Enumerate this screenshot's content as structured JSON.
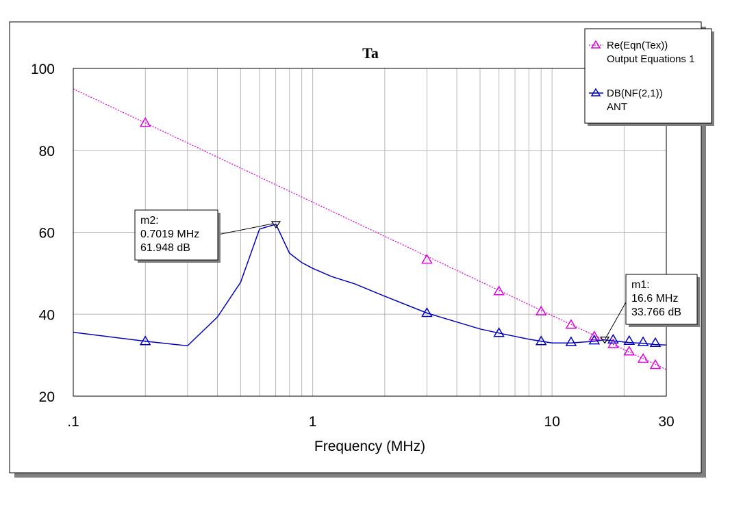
{
  "chart_data": {
    "type": "line",
    "title": "Ta",
    "xlabel": "Frequency (MHz)",
    "ylabel": "",
    "x_scale": "log",
    "xlim": [
      0.1,
      30
    ],
    "ylim": [
      20,
      100
    ],
    "x_ticks": [
      0.1,
      1,
      10,
      30
    ],
    "x_tick_labels": [
      ".1",
      "1",
      "10",
      "30"
    ],
    "y_ticks": [
      20,
      40,
      60,
      80,
      100
    ],
    "y_tick_labels": [
      "20",
      "40",
      "60",
      "80",
      "100"
    ],
    "grid": true,
    "legend_placement": "top-right",
    "series": [
      {
        "name": "Re(Eqn(Tex))",
        "source": "Output Equations 1",
        "color": "#e000e0",
        "style": "dotted",
        "marker": "triangle",
        "x": [
          0.1,
          30
        ],
        "y": [
          95.0,
          26.5
        ],
        "marker_x": [
          0.2,
          3.0,
          6.0,
          9.0,
          12.0,
          15.0,
          18.0,
          21.0,
          24.0,
          27.0
        ],
        "marker_y": [
          86.7,
          53.3,
          45.6,
          40.7,
          37.4,
          34.6,
          32.7,
          30.9,
          29.1,
          27.6
        ]
      },
      {
        "name": "DB(NF(2,1))",
        "source": "ANT",
        "color": "#0000c0",
        "style": "solid",
        "marker": "triangle",
        "x": [
          0.1,
          0.2,
          0.3,
          0.4,
          0.5,
          0.6,
          0.7019,
          0.8,
          0.9,
          1.0,
          1.2,
          1.5,
          2.0,
          3.0,
          5.0,
          6.0,
          8.0,
          9.0,
          10.0,
          12.0,
          15.0,
          16.6,
          18.0,
          21.0,
          24.0,
          27.0,
          30.0
        ],
        "y": [
          35.6,
          33.4,
          32.3,
          39.3,
          47.8,
          60.8,
          61.948,
          54.9,
          52.6,
          51.2,
          49.2,
          47.4,
          44.4,
          40.3,
          36.4,
          35.4,
          33.9,
          33.4,
          33.0,
          33.0,
          33.4,
          33.766,
          33.5,
          33.1,
          32.9,
          32.6,
          32.5
        ],
        "marker_x": [
          0.2,
          3.0,
          6.0,
          9.0,
          12.0,
          15.0,
          18.0,
          21.0,
          24.0,
          27.0
        ],
        "marker_y": [
          33.4,
          40.3,
          35.4,
          33.4,
          33.2,
          33.6,
          33.8,
          33.5,
          33.2,
          33.0
        ]
      }
    ],
    "markers": [
      {
        "name": "m2:",
        "freq": "0.7019 MHz",
        "value": "61.948 dB",
        "x": 0.7019,
        "y": 61.948
      },
      {
        "name": "m1:",
        "freq": "16.6 MHz",
        "value": "33.766 dB",
        "x": 16.6,
        "y": 33.766
      }
    ]
  }
}
